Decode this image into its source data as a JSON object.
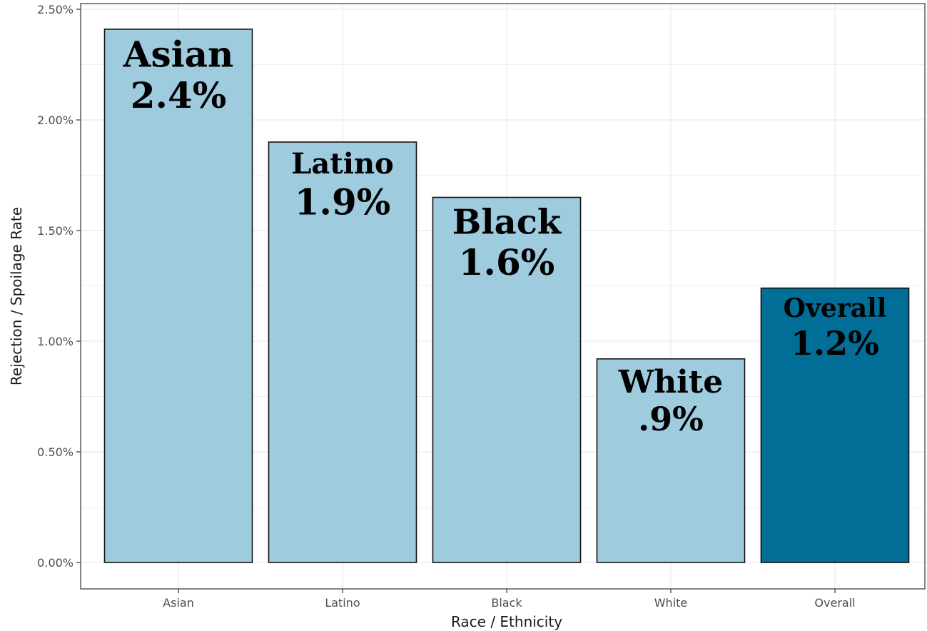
{
  "chart_data": {
    "type": "bar",
    "title": "",
    "xlabel": "Race / Ethnicity",
    "ylabel": "Rejection / Spoilage Rate",
    "categories": [
      "Asian",
      "Latino",
      "Black",
      "White",
      "Overall"
    ],
    "values": [
      2.41,
      1.9,
      1.65,
      0.92,
      1.24
    ],
    "ylim": [
      0,
      2.5
    ],
    "yticks": [
      "0.00%",
      "0.50%",
      "1.00%",
      "1.50%",
      "2.00%",
      "2.50%"
    ],
    "grid": true,
    "legend": "none",
    "colors": {
      "bar": "#9fcbdf",
      "highlight_bar": "#006e96",
      "bar_outline": "#111111",
      "grid": "#ebebeb",
      "panel_border": "#333333"
    },
    "highlight_category": "Overall",
    "bar_labels": [
      {
        "name": "Asian",
        "value": "2.4%"
      },
      {
        "name": "Latino",
        "value": "1.9%"
      },
      {
        "name": "Black",
        "value": "1.6%"
      },
      {
        "name": "White",
        "value": ".9%"
      },
      {
        "name": "Overall",
        "value": "1.2%"
      }
    ]
  }
}
